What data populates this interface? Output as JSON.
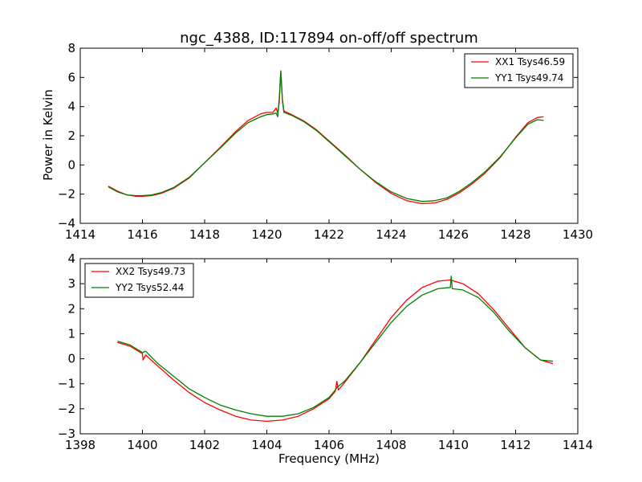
{
  "chart_data": [
    {
      "type": "line",
      "title": "ngc_4388, ID:117894 on-off/off spectrum",
      "xlabel": "",
      "ylabel": "Power in Kelvin",
      "xlim": [
        1414,
        1430
      ],
      "ylim": [
        -4,
        8
      ],
      "xticks": [
        "1414",
        "1416",
        "1418",
        "1420",
        "1422",
        "1424",
        "1426",
        "1428",
        "1430"
      ],
      "yticks": [
        "−4",
        "−2",
        "0",
        "2",
        "4",
        "6",
        "8"
      ],
      "grid": false,
      "legend_position": "top-right",
      "series": [
        {
          "name": "XX1 Tsys46.59",
          "color": "#ff0000",
          "points": [
            [
              1414.9,
              -1.45
            ],
            [
              1415.2,
              -1.8
            ],
            [
              1415.5,
              -2.05
            ],
            [
              1415.8,
              -2.15
            ],
            [
              1416.0,
              -2.15
            ],
            [
              1416.3,
              -2.1
            ],
            [
              1416.6,
              -1.95
            ],
            [
              1417.0,
              -1.6
            ],
            [
              1417.5,
              -0.9
            ],
            [
              1418.0,
              0.15
            ],
            [
              1418.5,
              1.2
            ],
            [
              1419.0,
              2.3
            ],
            [
              1419.4,
              3.05
            ],
            [
              1419.8,
              3.5
            ],
            [
              1420.0,
              3.6
            ],
            [
              1420.2,
              3.6
            ],
            [
              1420.3,
              3.9
            ],
            [
              1420.35,
              3.55
            ],
            [
              1420.4,
              4.3
            ],
            [
              1420.45,
              6.4
            ],
            [
              1420.5,
              4.5
            ],
            [
              1420.55,
              3.7
            ],
            [
              1420.8,
              3.45
            ],
            [
              1421.2,
              3.0
            ],
            [
              1421.6,
              2.4
            ],
            [
              1422.0,
              1.65
            ],
            [
              1422.5,
              0.7
            ],
            [
              1423.0,
              -0.3
            ],
            [
              1423.5,
              -1.2
            ],
            [
              1424.0,
              -1.95
            ],
            [
              1424.5,
              -2.45
            ],
            [
              1425.0,
              -2.65
            ],
            [
              1425.4,
              -2.6
            ],
            [
              1425.8,
              -2.35
            ],
            [
              1426.2,
              -1.9
            ],
            [
              1426.6,
              -1.3
            ],
            [
              1427.0,
              -0.6
            ],
            [
              1427.5,
              0.5
            ],
            [
              1428.0,
              1.9
            ],
            [
              1428.4,
              2.9
            ],
            [
              1428.7,
              3.25
            ],
            [
              1428.9,
              3.3
            ]
          ]
        },
        {
          "name": "YY1 Tsys49.74",
          "color": "#008000",
          "points": [
            [
              1414.9,
              -1.5
            ],
            [
              1415.2,
              -1.85
            ],
            [
              1415.5,
              -2.05
            ],
            [
              1415.8,
              -2.1
            ],
            [
              1416.0,
              -2.1
            ],
            [
              1416.3,
              -2.05
            ],
            [
              1416.6,
              -1.9
            ],
            [
              1417.0,
              -1.55
            ],
            [
              1417.5,
              -0.85
            ],
            [
              1418.0,
              0.15
            ],
            [
              1418.5,
              1.15
            ],
            [
              1419.0,
              2.2
            ],
            [
              1419.4,
              2.9
            ],
            [
              1419.8,
              3.3
            ],
            [
              1420.0,
              3.45
            ],
            [
              1420.2,
              3.5
            ],
            [
              1420.3,
              3.55
            ],
            [
              1420.35,
              3.3
            ],
            [
              1420.4,
              4.6
            ],
            [
              1420.45,
              6.45
            ],
            [
              1420.5,
              4.4
            ],
            [
              1420.55,
              3.6
            ],
            [
              1420.8,
              3.4
            ],
            [
              1421.2,
              2.95
            ],
            [
              1421.6,
              2.35
            ],
            [
              1422.0,
              1.6
            ],
            [
              1422.5,
              0.65
            ],
            [
              1423.0,
              -0.3
            ],
            [
              1423.5,
              -1.15
            ],
            [
              1424.0,
              -1.85
            ],
            [
              1424.5,
              -2.3
            ],
            [
              1425.0,
              -2.5
            ],
            [
              1425.4,
              -2.45
            ],
            [
              1425.8,
              -2.25
            ],
            [
              1426.2,
              -1.8
            ],
            [
              1426.6,
              -1.2
            ],
            [
              1427.0,
              -0.5
            ],
            [
              1427.5,
              0.55
            ],
            [
              1428.0,
              1.85
            ],
            [
              1428.4,
              2.8
            ],
            [
              1428.7,
              3.1
            ],
            [
              1428.9,
              3.05
            ]
          ]
        }
      ]
    },
    {
      "type": "line",
      "title": "",
      "xlabel": "Frequency (MHz)",
      "ylabel": "",
      "xlim": [
        1398,
        1414
      ],
      "ylim": [
        -3,
        4
      ],
      "xticks": [
        "1398",
        "1400",
        "1402",
        "1404",
        "1406",
        "1408",
        "1410",
        "1412",
        "1414"
      ],
      "yticks": [
        "−3",
        "−2",
        "−1",
        "0",
        "1",
        "2",
        "3",
        "4"
      ],
      "grid": false,
      "legend_position": "top-left",
      "series": [
        {
          "name": "XX2 Tsys49.73",
          "color": "#ff0000",
          "points": [
            [
              1399.2,
              0.65
            ],
            [
              1399.6,
              0.5
            ],
            [
              1400.0,
              0.2
            ],
            [
              1400.02,
              -0.05
            ],
            [
              1400.1,
              0.15
            ],
            [
              1400.5,
              -0.3
            ],
            [
              1401.0,
              -0.85
            ],
            [
              1401.5,
              -1.35
            ],
            [
              1402.0,
              -1.75
            ],
            [
              1402.5,
              -2.05
            ],
            [
              1403.0,
              -2.3
            ],
            [
              1403.5,
              -2.45
            ],
            [
              1404.0,
              -2.5
            ],
            [
              1404.5,
              -2.45
            ],
            [
              1405.0,
              -2.3
            ],
            [
              1405.5,
              -2.0
            ],
            [
              1406.0,
              -1.6
            ],
            [
              1406.2,
              -1.3
            ],
            [
              1406.25,
              -0.9
            ],
            [
              1406.3,
              -1.25
            ],
            [
              1406.5,
              -0.95
            ],
            [
              1407.0,
              -0.15
            ],
            [
              1407.5,
              0.75
            ],
            [
              1408.0,
              1.65
            ],
            [
              1408.5,
              2.35
            ],
            [
              1409.0,
              2.85
            ],
            [
              1409.5,
              3.1
            ],
            [
              1409.9,
              3.15
            ],
            [
              1410.3,
              3.0
            ],
            [
              1410.8,
              2.6
            ],
            [
              1411.3,
              1.95
            ],
            [
              1411.8,
              1.2
            ],
            [
              1412.3,
              0.45
            ],
            [
              1412.8,
              -0.05
            ],
            [
              1413.2,
              -0.2
            ]
          ]
        },
        {
          "name": "YY2 Tsys52.44",
          "color": "#008000",
          "points": [
            [
              1399.2,
              0.7
            ],
            [
              1399.6,
              0.55
            ],
            [
              1400.0,
              0.25
            ],
            [
              1400.1,
              0.3
            ],
            [
              1400.5,
              -0.2
            ],
            [
              1401.0,
              -0.7
            ],
            [
              1401.5,
              -1.2
            ],
            [
              1402.0,
              -1.55
            ],
            [
              1402.5,
              -1.85
            ],
            [
              1403.0,
              -2.05
            ],
            [
              1403.5,
              -2.2
            ],
            [
              1404.0,
              -2.3
            ],
            [
              1404.5,
              -2.3
            ],
            [
              1405.0,
              -2.2
            ],
            [
              1405.5,
              -1.95
            ],
            [
              1406.0,
              -1.55
            ],
            [
              1406.2,
              -1.25
            ],
            [
              1406.25,
              -1.15
            ],
            [
              1406.5,
              -0.9
            ],
            [
              1407.0,
              -0.15
            ],
            [
              1407.5,
              0.65
            ],
            [
              1408.0,
              1.45
            ],
            [
              1408.5,
              2.1
            ],
            [
              1409.0,
              2.55
            ],
            [
              1409.5,
              2.8
            ],
            [
              1409.9,
              2.85
            ],
            [
              1409.93,
              3.3
            ],
            [
              1409.96,
              2.8
            ],
            [
              1410.3,
              2.75
            ],
            [
              1410.8,
              2.45
            ],
            [
              1411.3,
              1.85
            ],
            [
              1411.8,
              1.1
            ],
            [
              1412.3,
              0.45
            ],
            [
              1412.8,
              -0.05
            ],
            [
              1413.2,
              -0.1
            ]
          ]
        }
      ]
    }
  ]
}
